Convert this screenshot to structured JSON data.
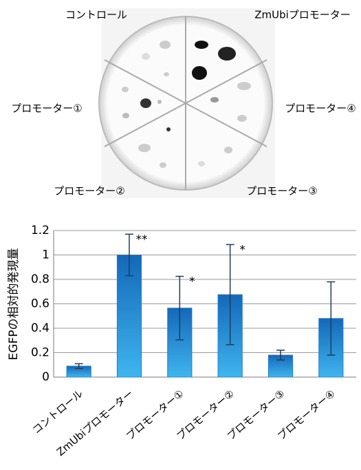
{
  "image": {
    "labels": [
      "コントロール",
      "ZmUbiプロモーター",
      "プロモーター①",
      "プロモーター④",
      "プロモーター②",
      "プロモーター③"
    ]
  },
  "chart_data": {
    "type": "bar",
    "y_label": "EGFPの相対的発現量",
    "categories": [
      "コントロール",
      "ZmUbiプロモーター",
      "プロモーター①",
      "プロモーター②",
      "プロモーター③",
      "プロモーター④"
    ],
    "values": [
      0.09,
      1.0,
      0.565,
      0.675,
      0.18,
      0.48
    ],
    "errors": [
      0.02,
      0.17,
      0.26,
      0.41,
      0.04,
      0.3
    ],
    "significance": [
      null,
      "**",
      "*",
      "*",
      null,
      null
    ],
    "color": "#1a7fd4",
    "ylim": [
      0,
      1.2
    ],
    "yticks": [
      0,
      0.2,
      0.4,
      0.6,
      0.8,
      1,
      1.2
    ],
    "grid": true
  }
}
